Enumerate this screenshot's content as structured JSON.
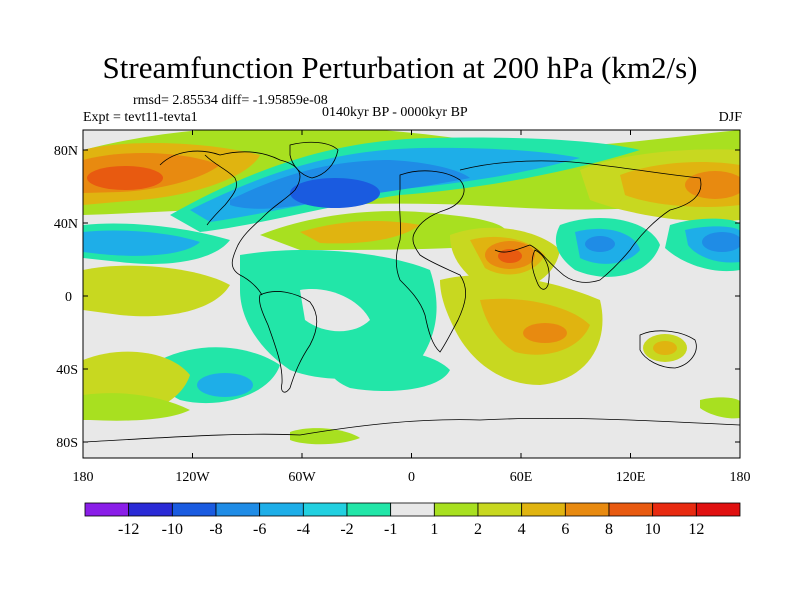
{
  "title": "Streamfunction Perturbation at 200 hPa (km2/s)",
  "stats": "rmsd= 2.85534 diff= -1.95859e-08",
  "experiment": "Expt = tevt11-tevta1",
  "period": "0140kyr BP - 0000kyr BP",
  "season": "DJF",
  "axes": {
    "lat_labels": [
      "80N",
      "40N",
      "0",
      "40S",
      "80S"
    ],
    "lon_labels": [
      "180",
      "120W",
      "60W",
      "0",
      "60E",
      "120E",
      "180"
    ]
  },
  "colorbar": {
    "labels": [
      "-12",
      "-10",
      "-8",
      "-6",
      "-4",
      "-2",
      "-1",
      "1",
      "2",
      "4",
      "6",
      "8",
      "10",
      "12"
    ],
    "colors": [
      "#8a1ee8",
      "#2a2ad6",
      "#1a5be0",
      "#1f8ce6",
      "#1eaee8",
      "#22d0e0",
      "#22e6a8",
      "#e8e8e8",
      "#a8e020",
      "#c8d820",
      "#e0b410",
      "#e88a10",
      "#e85a10",
      "#e82a10",
      "#e01010"
    ]
  },
  "colors": {
    "background": "#ffffff",
    "zero_band": "#e8e8e8",
    "coastline": "#000000"
  }
}
